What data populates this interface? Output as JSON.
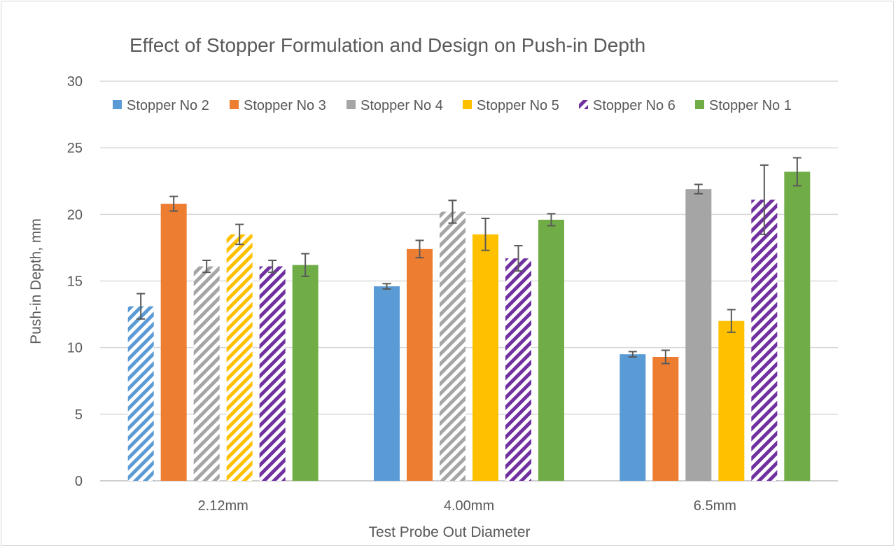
{
  "chart_data": {
    "type": "bar",
    "title": "Effect of Stopper Formulation and Design on Push-in Depth",
    "xlabel": "Test Probe Out Diameter",
    "ylabel": "Push-in Depth, mm",
    "categories": [
      "2.12mm",
      "4.00mm",
      "6.5mm"
    ],
    "ylim": [
      0,
      30
    ],
    "yticks": [
      0,
      5,
      10,
      15,
      20,
      25,
      30
    ],
    "grid": true,
    "legend_position": "top",
    "series": [
      {
        "name": "Stopper No 2",
        "color": "#5b9bd5",
        "values": [
          13.1,
          14.6,
          9.5
        ],
        "errors": [
          0.95,
          0.2,
          0.2
        ],
        "hatched": [
          true,
          false,
          false
        ]
      },
      {
        "name": "Stopper No 3",
        "color": "#ed7d31",
        "values": [
          20.8,
          17.4,
          9.3
        ],
        "errors": [
          0.55,
          0.65,
          0.5
        ],
        "hatched": [
          false,
          false,
          false
        ]
      },
      {
        "name": "Stopper No 4",
        "color": "#a5a5a5",
        "values": [
          16.1,
          20.2,
          21.9
        ],
        "errors": [
          0.45,
          0.85,
          0.35
        ],
        "hatched": [
          true,
          true,
          false
        ]
      },
      {
        "name": "Stopper No 5",
        "color": "#ffc000",
        "values": [
          18.5,
          18.5,
          12.0
        ],
        "errors": [
          0.75,
          1.2,
          0.85
        ],
        "hatched": [
          true,
          false,
          false
        ]
      },
      {
        "name": "Stopper No 6",
        "color": "#7030a0",
        "values": [
          16.1,
          16.7,
          21.1
        ],
        "errors": [
          0.45,
          0.95,
          2.6
        ],
        "hatched": [
          true,
          true,
          true
        ]
      },
      {
        "name": "Stopper No 1",
        "color": "#70ad47",
        "values": [
          16.2,
          19.6,
          23.2
        ],
        "errors": [
          0.85,
          0.45,
          1.05
        ],
        "hatched": [
          false,
          false,
          false
        ]
      }
    ]
  }
}
